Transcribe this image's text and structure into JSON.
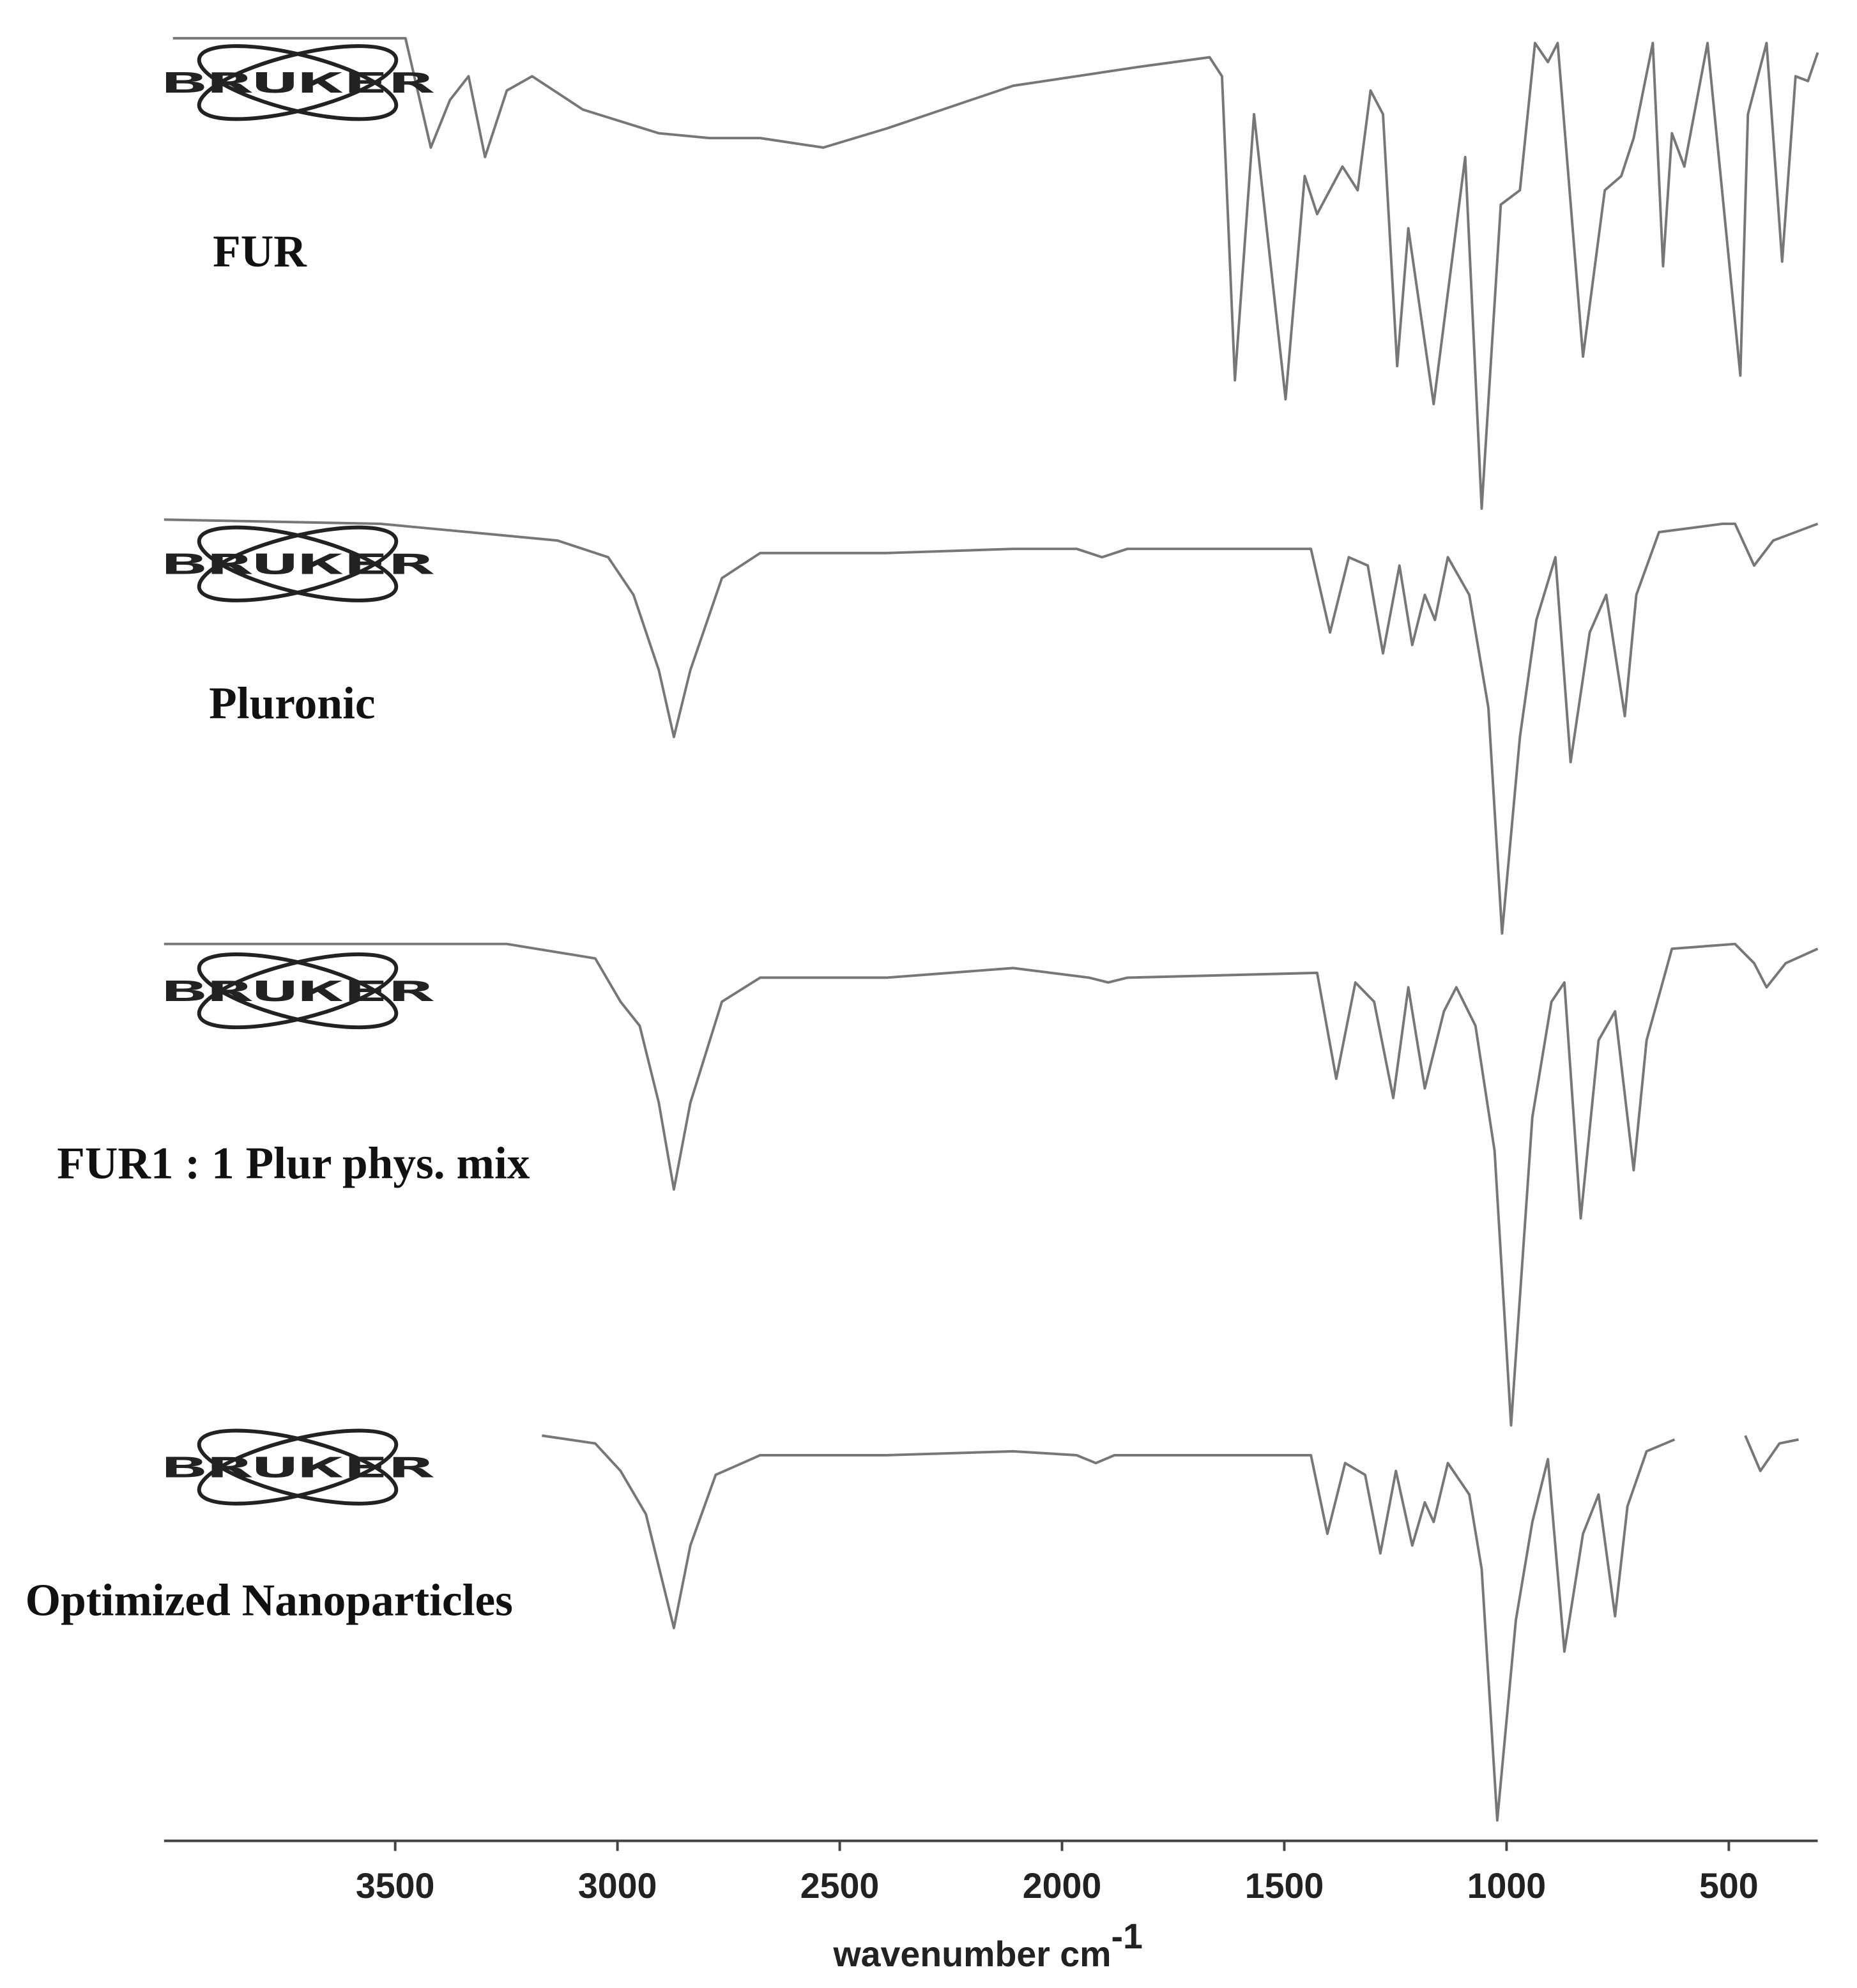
{
  "chart_data": [
    {
      "type": "line",
      "logo": "BRUKER",
      "xlim": [
        4020,
        300
      ],
      "ylim": [
        0,
        100
      ],
      "x": [
        4000,
        3477,
        3420,
        3377,
        3335,
        3298,
        3249,
        3192,
        3078,
        2907,
        2793,
        2679,
        2537,
        2395,
        2110,
        1825,
        1668,
        1640,
        1611,
        1568,
        1497,
        1454,
        1426,
        1369,
        1335,
        1306,
        1278,
        1246,
        1221,
        1164,
        1093,
        1056,
        1013,
        970,
        936,
        907,
        885,
        828,
        779,
        742,
        714,
        671,
        648,
        628,
        600,
        548,
        474,
        457,
        415,
        380,
        350,
        322,
        300
      ],
      "series": [
        {
          "name": "FUR",
          "color": "#777777",
          "values": [
            100,
            100,
            77,
            87,
            92,
            75,
            89,
            92,
            85,
            80,
            79,
            79,
            77,
            81,
            90,
            94,
            96,
            92,
            28,
            84,
            24,
            71,
            63,
            73,
            68,
            89,
            84,
            31,
            60,
            23,
            75,
            1,
            65,
            68,
            99,
            95,
            99,
            33,
            68,
            71,
            79,
            99,
            52,
            80,
            73,
            99,
            29,
            84,
            99,
            53,
            92,
            91,
            97
          ]
        }
      ]
    },
    {
      "type": "line",
      "logo": "BRUKER",
      "xlim": [
        4020,
        300
      ],
      "ylim": [
        0,
        100
      ],
      "x": [
        4020,
        3534,
        3135,
        3021,
        2964,
        2907,
        2873,
        2836,
        2765,
        2679,
        2395,
        2110,
        1967,
        1910,
        1853,
        1440,
        1397,
        1355,
        1312,
        1278,
        1241,
        1212,
        1184,
        1161,
        1132,
        1084,
        1041,
        1010,
        970,
        933,
        890,
        856,
        813,
        776,
        734,
        708,
        657,
        514,
        486,
        443,
        400,
        300
      ],
      "series": [
        {
          "name": "Pluronic",
          "color": "#777777",
          "values": [
            100,
            99,
            95,
            91,
            82,
            64,
            48,
            64,
            86,
            92,
            92,
            93,
            93,
            91,
            93,
            93,
            73,
            91,
            89,
            68,
            89,
            70,
            82,
            76,
            91,
            82,
            55,
            1,
            48,
            76,
            91,
            42,
            73,
            82,
            53,
            82,
            97,
            99,
            99,
            89,
            95,
            99
          ]
        }
      ]
    },
    {
      "type": "line",
      "logo": "BRUKER",
      "xlim": [
        4020,
        300
      ],
      "ylim": [
        0,
        100
      ],
      "x": [
        4020,
        3534,
        3249,
        3050,
        2993,
        2950,
        2907,
        2873,
        2836,
        2765,
        2679,
        2395,
        2110,
        1939,
        1896,
        1853,
        1426,
        1383,
        1340,
        1298,
        1255,
        1221,
        1184,
        1141,
        1113,
        1070,
        1027,
        990,
        942,
        899,
        870,
        833,
        793,
        756,
        714,
        685,
        628,
        486,
        443,
        415,
        372,
        300
      ],
      "series": [
        {
          "name": "FUR1 : 1 Plur phys. mix",
          "color": "#777777",
          "values": [
            100,
            100,
            100,
            97,
            88,
            83,
            67,
            49,
            67,
            88,
            93,
            93,
            95,
            93,
            92,
            93,
            94,
            72,
            92,
            88,
            68,
            91,
            70,
            86,
            91,
            83,
            57,
            0,
            64,
            88,
            92,
            43,
            80,
            86,
            53,
            80,
            99,
            100,
            96,
            91,
            96,
            99
          ]
        }
      ]
    },
    {
      "type": "line",
      "logo": "BRUKER",
      "xlim": [
        4020,
        300
      ],
      "ylim": [
        0,
        100
      ],
      "xticks": [
        3500,
        3000,
        2500,
        2000,
        1500,
        1000,
        500
      ],
      "xlabel": "wavenumber cm",
      "xlabel_superscript": "-1",
      "x": [
        3170,
        3050,
        2993,
        2936,
        2873,
        2836,
        2779,
        2679,
        2395,
        2110,
        1967,
        1924,
        1882,
        1440,
        1403,
        1363,
        1318,
        1284,
        1249,
        1212,
        1184,
        1164,
        1132,
        1084,
        1056,
        1021,
        979,
        942,
        907,
        870,
        828,
        793,
        756,
        728,
        685,
        622,
        540,
        463,
        429,
        386,
        343
      ],
      "series": [
        {
          "name": "Optimized Nanoparticles",
          "color": "#777777",
          "values": [
            99,
            97,
            90,
            79,
            50,
            71,
            89,
            94,
            94,
            95,
            94,
            92,
            94,
            94,
            74,
            92,
            89,
            69,
            90,
            71,
            82,
            77,
            92,
            84,
            65,
            1,
            52,
            77,
            93,
            44,
            74,
            84,
            53,
            81,
            95,
            98,
            null,
            99,
            90,
            97,
            98
          ]
        }
      ]
    }
  ]
}
